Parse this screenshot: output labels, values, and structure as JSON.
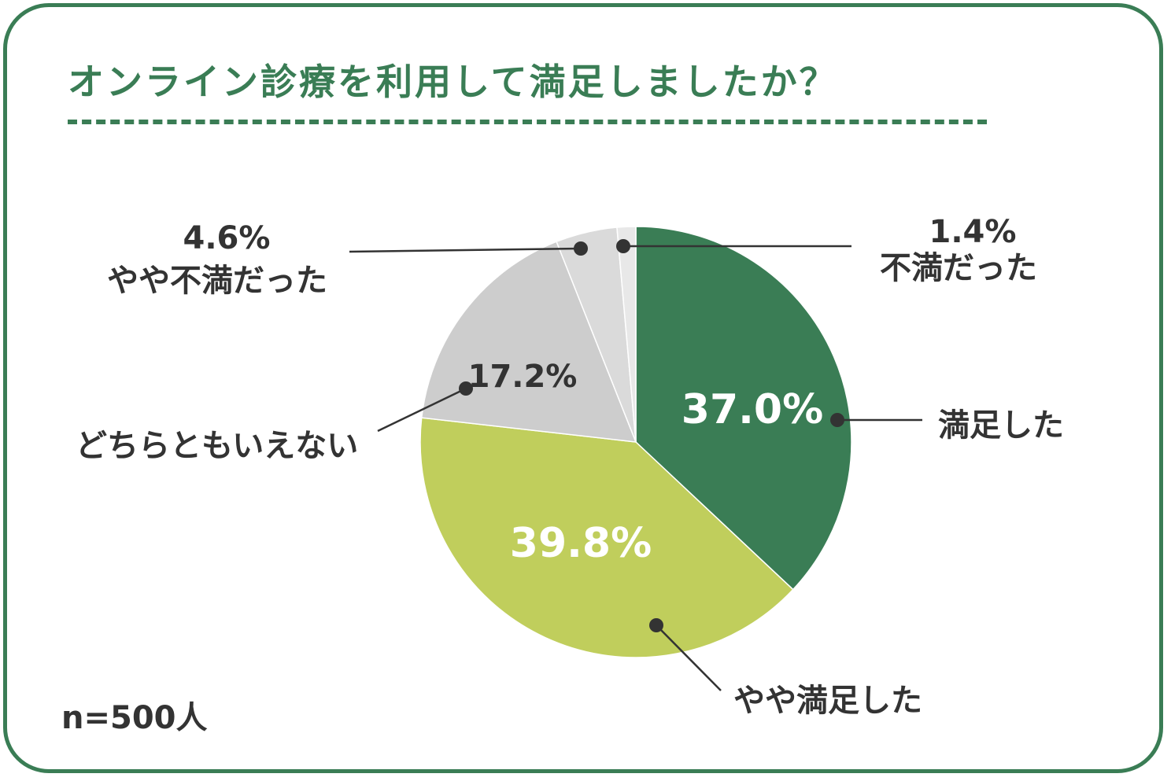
{
  "title": "オンライン診療を利用して満足しましたか？",
  "note": "n=500人",
  "colors": {
    "frame": "#3a7d55",
    "title": "#3a7d55",
    "text": "#333333",
    "inside_label": "#ffffff"
  },
  "chart_data": {
    "type": "pie",
    "title": "オンライン診療を利用して満足しましたか？",
    "slices": [
      {
        "label": "満足した",
        "value": 37.0,
        "value_label": "37.0%",
        "color": "#3a7d55"
      },
      {
        "label": "やや満足した",
        "value": 39.8,
        "value_label": "39.8%",
        "color": "#c0ce5c"
      },
      {
        "label": "どちらともいえない",
        "value": 17.2,
        "value_label": "17.2%",
        "color": "#cdcdcd"
      },
      {
        "label": "やや不満だった",
        "value": 4.6,
        "value_label": "4.6%",
        "color": "#dadada"
      },
      {
        "label": "不満だった",
        "value": 1.4,
        "value_label": "1.4%",
        "color": "#e8e8e8"
      }
    ]
  }
}
